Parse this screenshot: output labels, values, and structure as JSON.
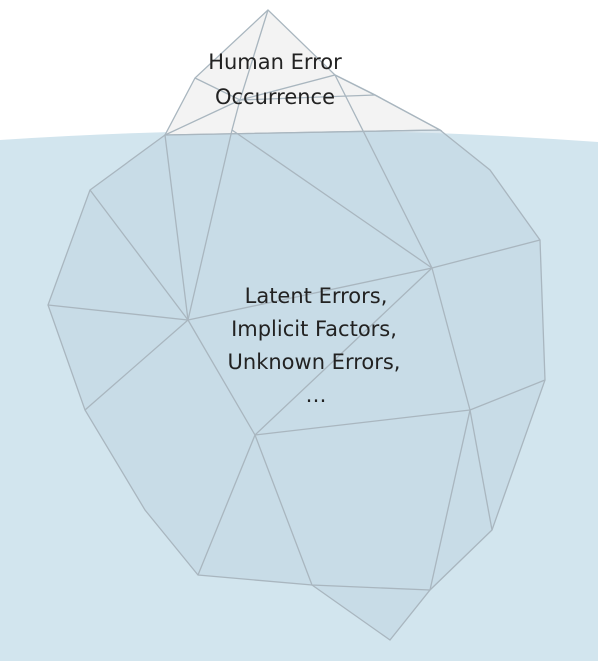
{
  "tip": {
    "lines": [
      "Human Error",
      "Occurrence"
    ]
  },
  "base": {
    "lines": [
      "Latent Errors,",
      "Implicit Factors,",
      "Unknown Errors,",
      "…"
    ]
  }
}
